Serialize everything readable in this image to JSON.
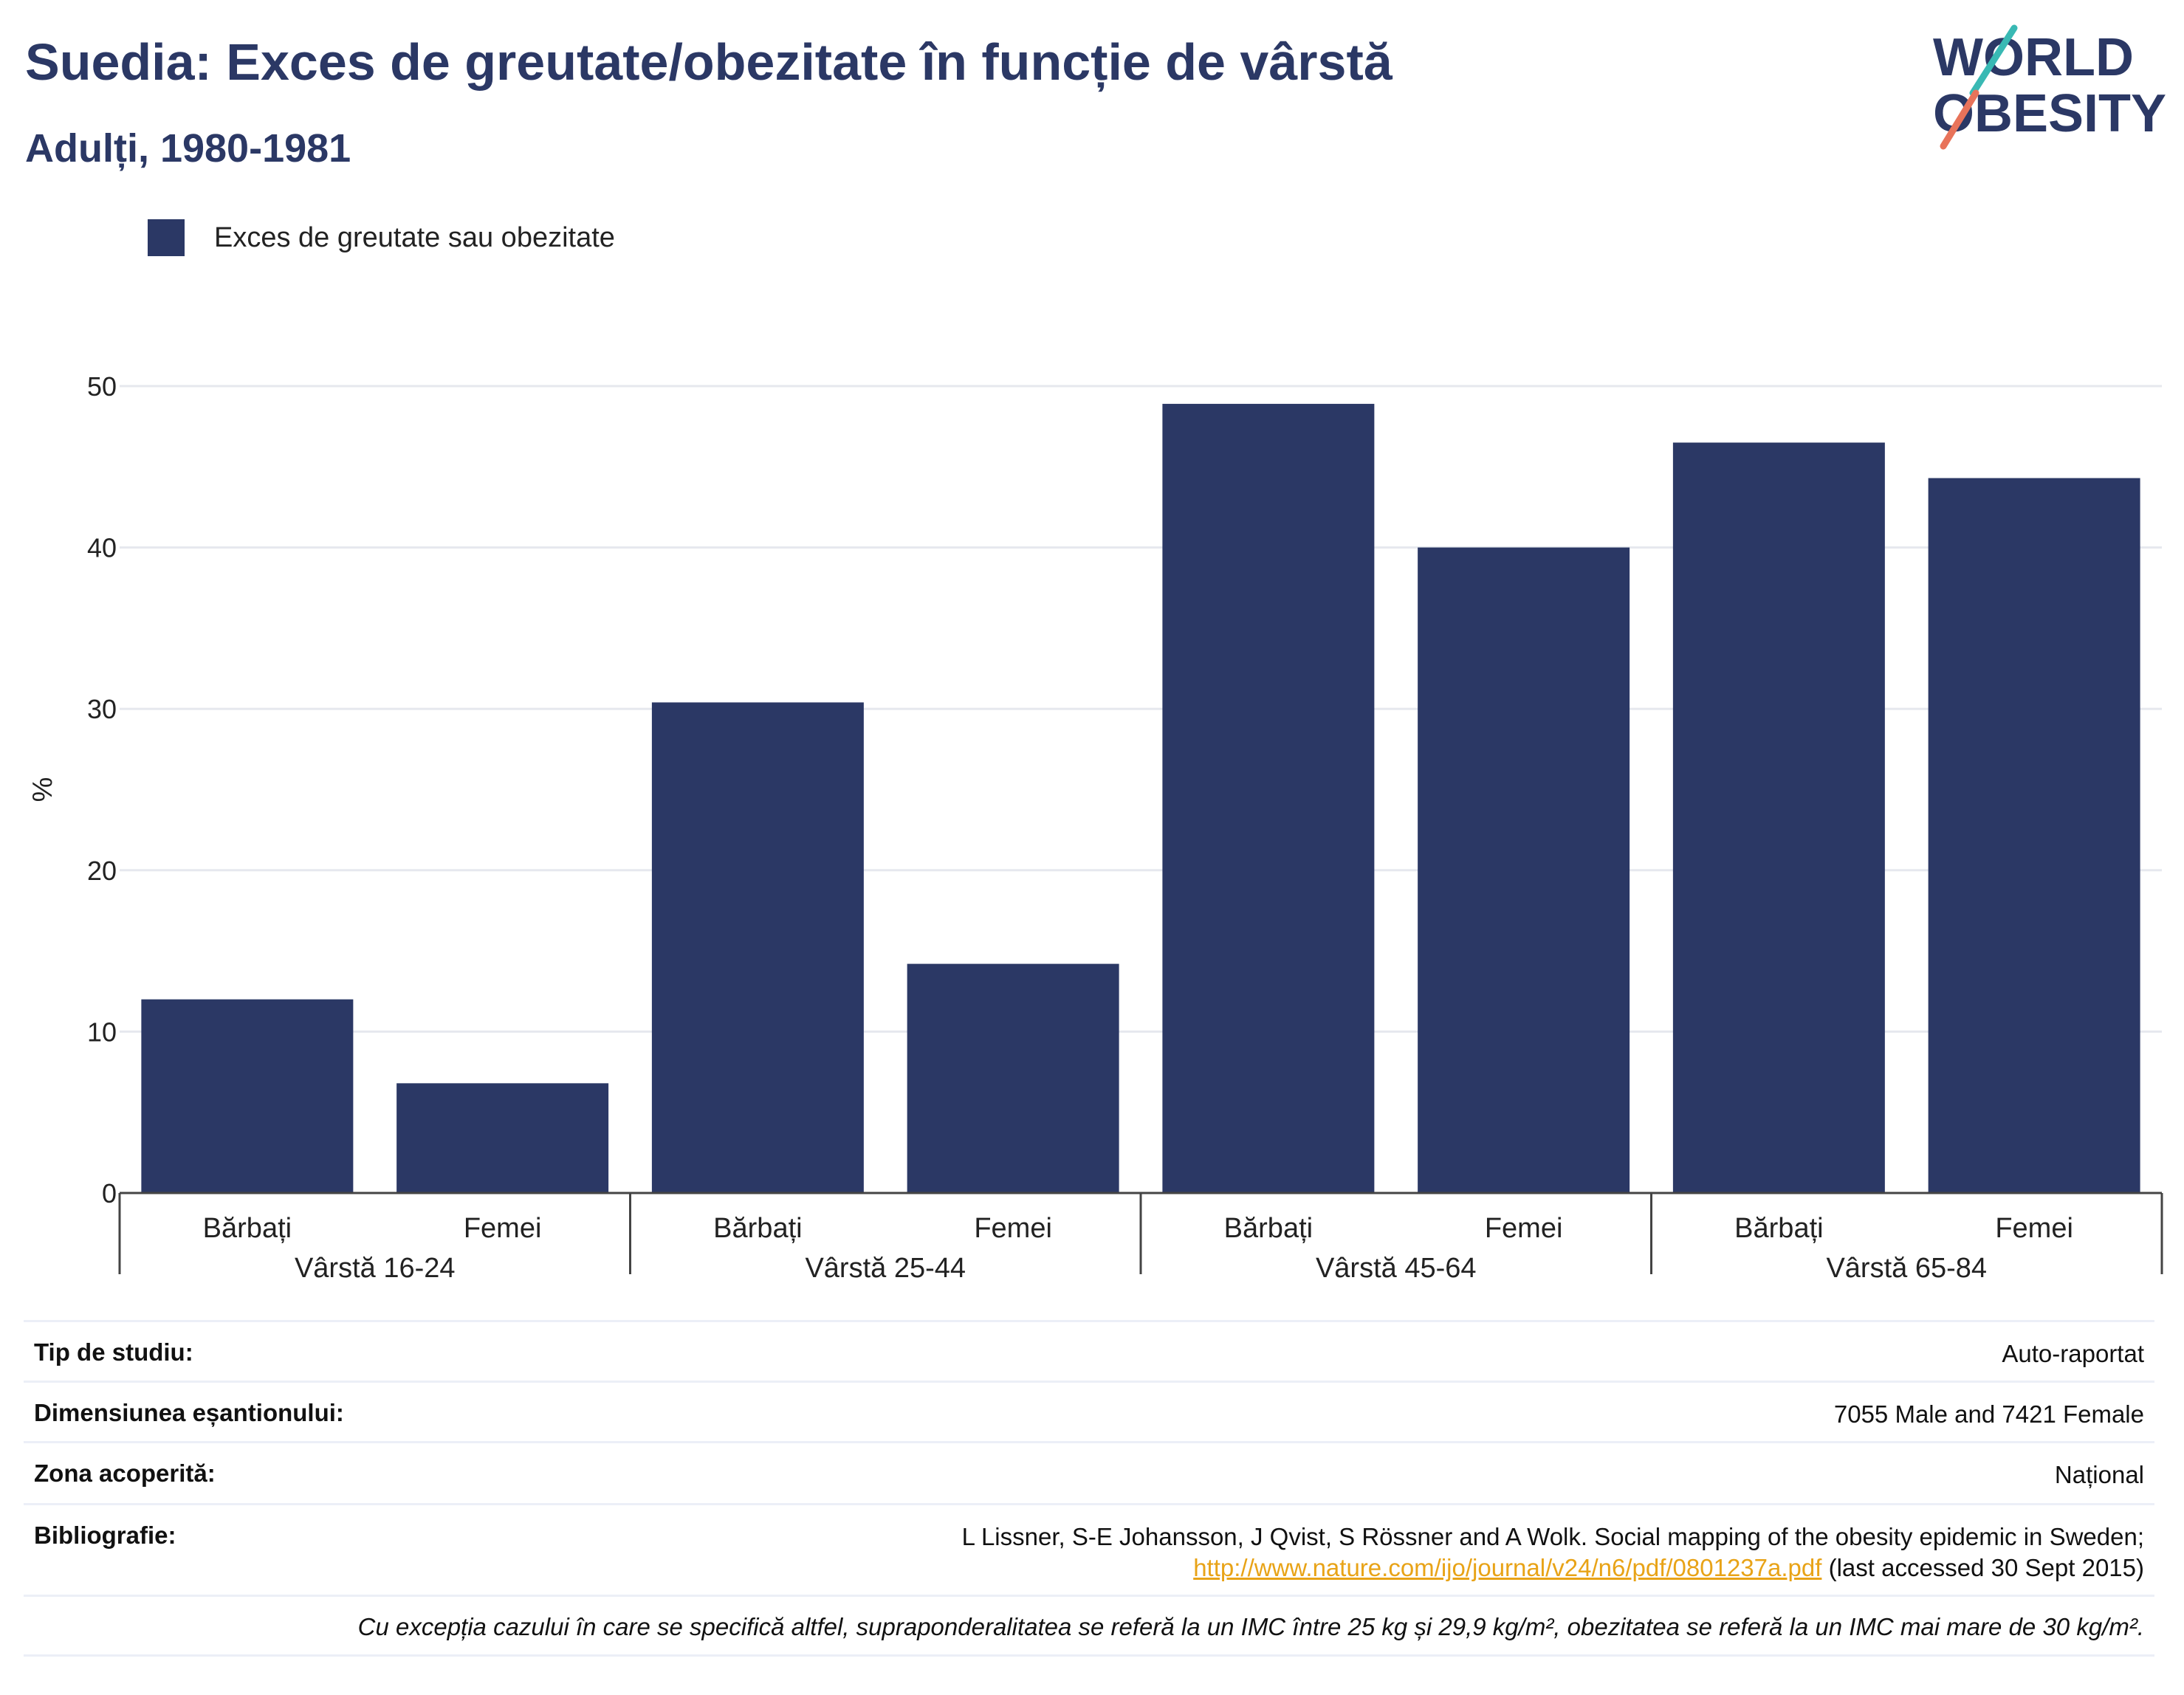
{
  "title": "Suedia: Exces de greutate/obezitate în funcție de vârstă",
  "subtitle": "Adulți, 1980-1981",
  "logo": {
    "line1": "WORLD",
    "line2": "OBESITY",
    "slash_colors": [
      "#39b9b4",
      "#e8735a"
    ],
    "text_color": "#2b3865"
  },
  "chart_data": {
    "type": "bar",
    "title": "Suedia: Exces de greutate/obezitate în funcție de vârstă",
    "subtitle": "Adulți, 1980-1981",
    "ylabel": "%",
    "ylim": [
      0,
      50
    ],
    "yticks": [
      0,
      10,
      20,
      30,
      40,
      50
    ],
    "grid": true,
    "legend_position": "top-left",
    "bar_color": "#2b3865",
    "groups": [
      "Vârstă 16-24",
      "Vârstă 25-44",
      "Vârstă 45-64",
      "Vârstă 65-84"
    ],
    "categories": [
      "Bărbați",
      "Femei"
    ],
    "series": [
      {
        "name": "Exces de greutate sau obezitate",
        "values": [
          [
            12,
            6.8
          ],
          [
            30.4,
            14.2
          ],
          [
            48.9,
            40
          ],
          [
            46.5,
            44.3
          ]
        ]
      }
    ]
  },
  "info": {
    "study_type_label": "Tip de studiu:",
    "study_type_value": "Auto-raportat",
    "sample_label": "Dimensiunea eșantionului:",
    "sample_value": "7055 Male and 7421 Female",
    "area_label": "Zona acoperită:",
    "area_value": "Național",
    "biblio_label": "Bibliografie:",
    "biblio_text": "L Lissner, S-E Johansson, J Qvist, S Rössner and A Wolk. Social mapping of the obesity epidemic in Sweden;",
    "biblio_link": "http://www.nature.com/ijo/journal/v24/n6/pdf/0801237a.pdf",
    "biblio_accessed": "(last accessed 30 Sept 2015)",
    "note": "Cu excepția cazului în care se specifică altfel, supraponderalitatea se referă la un IMC între 25 kg și 29,9 kg/m², obezitatea se referă la un IMC mai mare de 30 kg/m²."
  }
}
